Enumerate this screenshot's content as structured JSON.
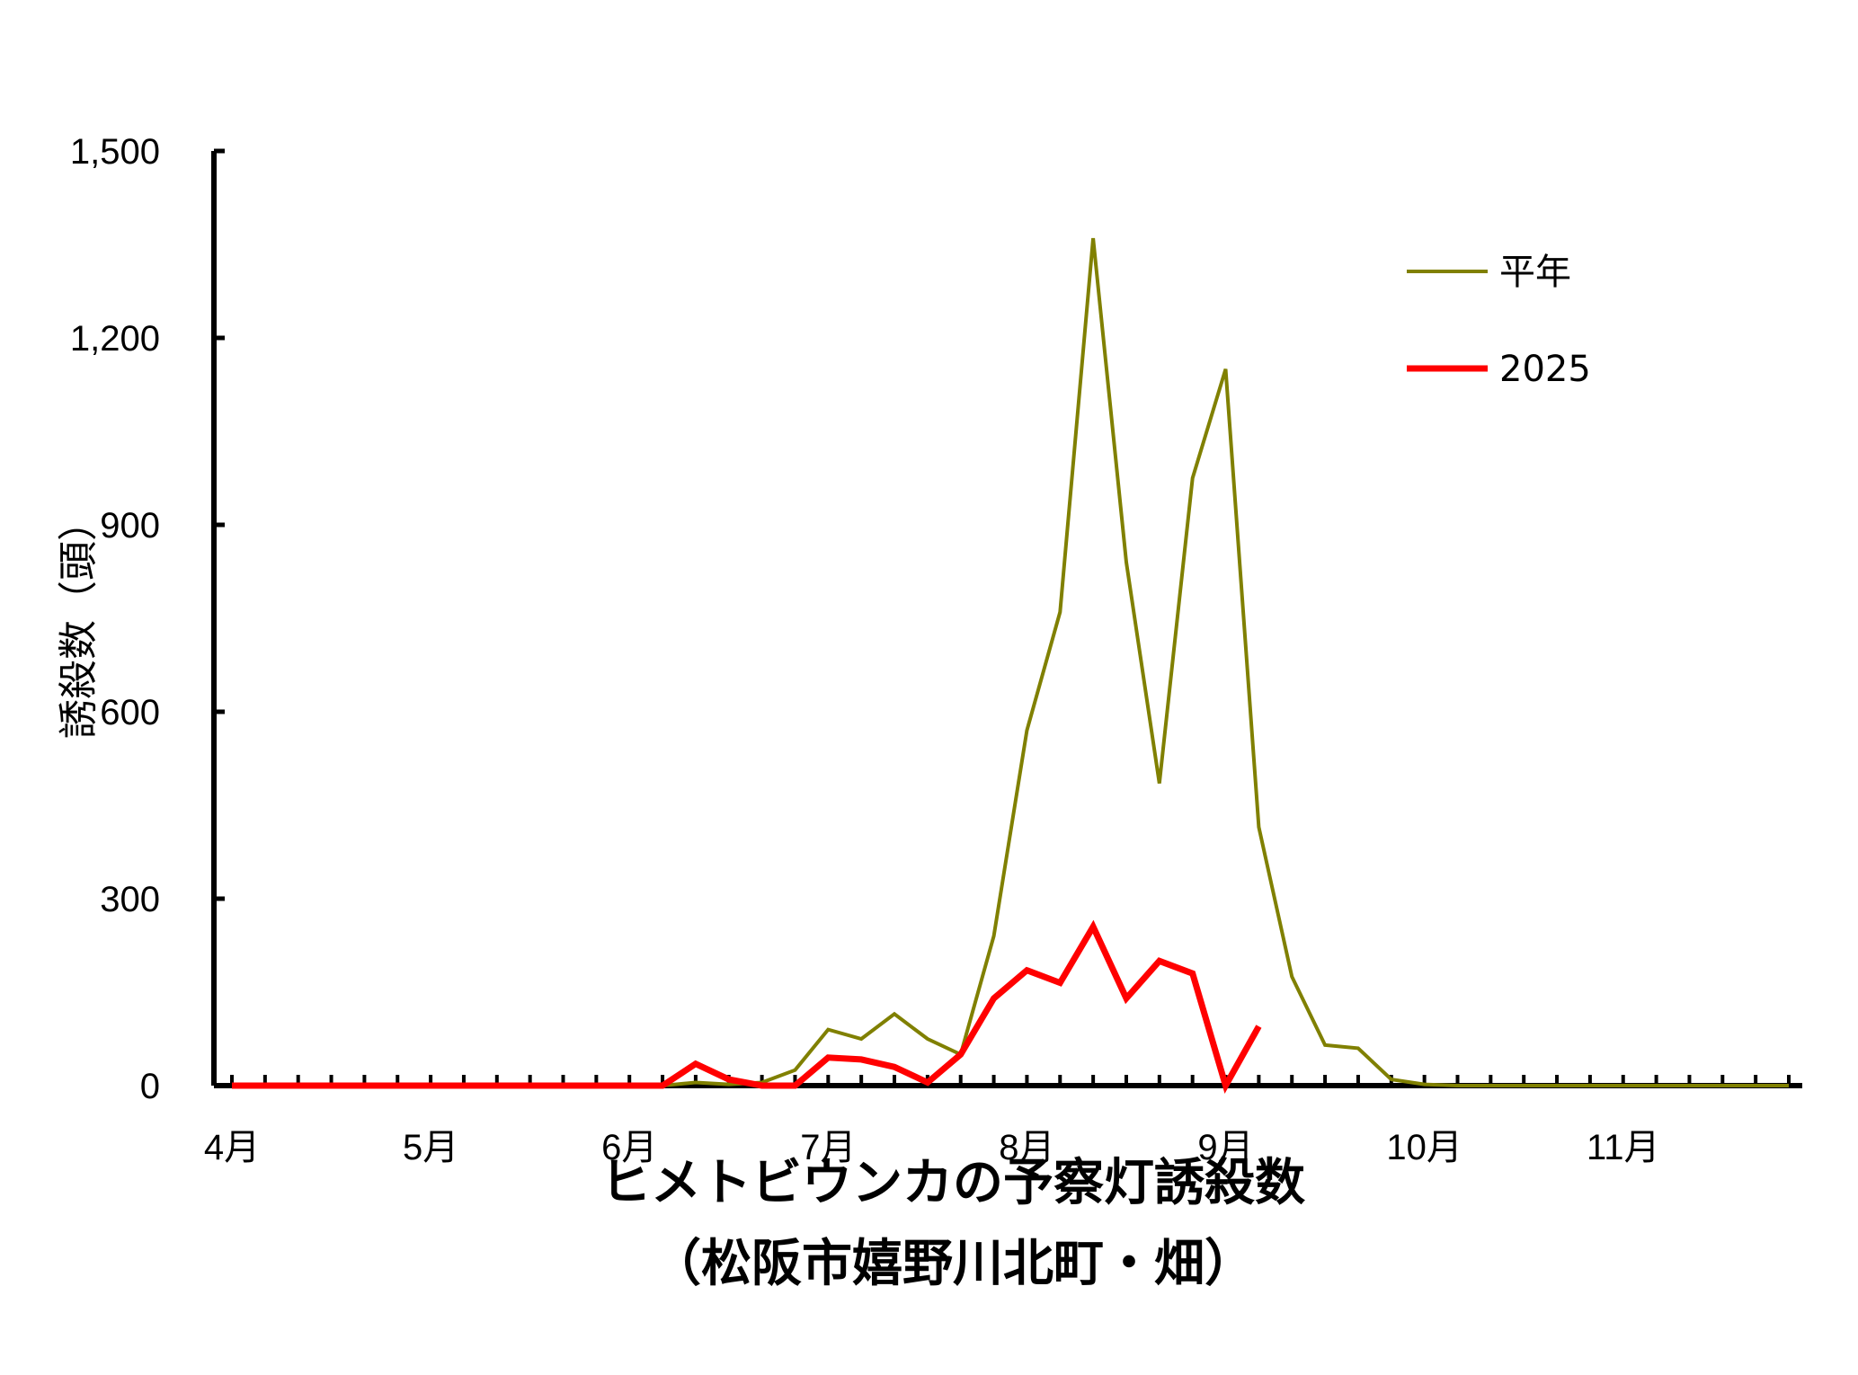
{
  "chart_data": {
    "type": "line",
    "title": "ヒメトビウンカの予察灯誘殺数",
    "subtitle": "（松阪市嬉野川北町・畑）",
    "ylabel": "誘殺数（頭）",
    "xlabel": "",
    "ylim": [
      0,
      1500
    ],
    "yticks": [
      0,
      300,
      600,
      900,
      1200,
      1500
    ],
    "ytick_labels": [
      "0",
      "300",
      "600",
      "900",
      "1,200",
      "1,500"
    ],
    "month_labels": [
      "4月",
      "5月",
      "6月",
      "7月",
      "8月",
      "9月",
      "10月",
      "11月"
    ],
    "grid": false,
    "legend_position": "top-right",
    "x_unit": "半旬 (5-day period, index from 4月 start)",
    "series": [
      {
        "name": "平年",
        "color": "#808000",
        "x": [
          0,
          1,
          2,
          3,
          4,
          5,
          6,
          7,
          8,
          9,
          10,
          11,
          12,
          13,
          14,
          15,
          16,
          17,
          18,
          19,
          20,
          21,
          22,
          23,
          24,
          25,
          26,
          27,
          28,
          29,
          30,
          31,
          32,
          33,
          34,
          35,
          36,
          37,
          38,
          39,
          40,
          41,
          42,
          43,
          44,
          45,
          46,
          47
        ],
        "values": [
          0,
          0,
          0,
          0,
          0,
          0,
          0,
          0,
          0,
          0,
          0,
          0,
          0,
          0,
          5,
          2,
          5,
          25,
          90,
          75,
          115,
          75,
          50,
          240,
          570,
          760,
          1360,
          840,
          485,
          975,
          1150,
          415,
          175,
          65,
          60,
          10,
          2,
          0,
          0,
          0,
          0,
          0,
          0,
          0,
          0,
          0,
          0,
          0
        ]
      },
      {
        "name": "2025",
        "color": "#ff0000",
        "x": [
          0,
          1,
          2,
          3,
          4,
          5,
          6,
          7,
          8,
          9,
          10,
          11,
          12,
          13,
          14,
          15,
          16,
          17,
          18,
          19,
          20,
          21,
          22,
          23,
          24,
          25,
          26,
          27,
          28,
          29,
          30,
          31
        ],
        "values": [
          0,
          0,
          0,
          0,
          0,
          0,
          0,
          0,
          0,
          0,
          0,
          0,
          0,
          0,
          35,
          10,
          0,
          0,
          45,
          42,
          30,
          5,
          50,
          140,
          185,
          165,
          255,
          140,
          200,
          180,
          0,
          95
        ]
      }
    ]
  }
}
